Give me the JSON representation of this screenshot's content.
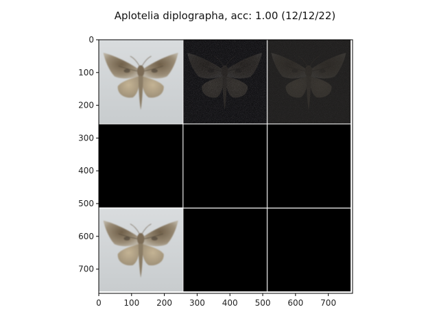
{
  "title": "Aplotelia diplographa, acc: 1.00 (12/12/22)",
  "chart_data": {
    "type": "image_grid",
    "title": "Aplotelia diplographa, acc: 1.00 (12/12/22)",
    "xlim": [
      0,
      774
    ],
    "ylim": [
      774,
      0
    ],
    "x_ticks": [
      0,
      100,
      200,
      300,
      400,
      500,
      600,
      700
    ],
    "y_ticks": [
      0,
      100,
      200,
      300,
      400,
      500,
      600,
      700
    ],
    "grid_rows": 3,
    "grid_cols": 3,
    "tile_size": 256,
    "separator_color": "#ffffff",
    "tiles": [
      {
        "row": 0,
        "col": 0,
        "content": "moth-photo",
        "background": "#cfd3d6"
      },
      {
        "row": 0,
        "col": 1,
        "content": "noisy-moth-silhouette-dark",
        "background": "#0e0e10"
      },
      {
        "row": 0,
        "col": 2,
        "content": "faint-moth-silhouette-dark",
        "background": "#1f1e1d"
      },
      {
        "row": 1,
        "col": 0,
        "content": "black",
        "background": "#000000"
      },
      {
        "row": 1,
        "col": 1,
        "content": "black",
        "background": "#000000"
      },
      {
        "row": 1,
        "col": 2,
        "content": "black",
        "background": "#000000"
      },
      {
        "row": 2,
        "col": 0,
        "content": "moth-photo",
        "background": "#d1d5d7"
      },
      {
        "row": 2,
        "col": 1,
        "content": "black",
        "background": "#000000"
      },
      {
        "row": 2,
        "col": 2,
        "content": "black",
        "background": "#000000"
      }
    ]
  }
}
